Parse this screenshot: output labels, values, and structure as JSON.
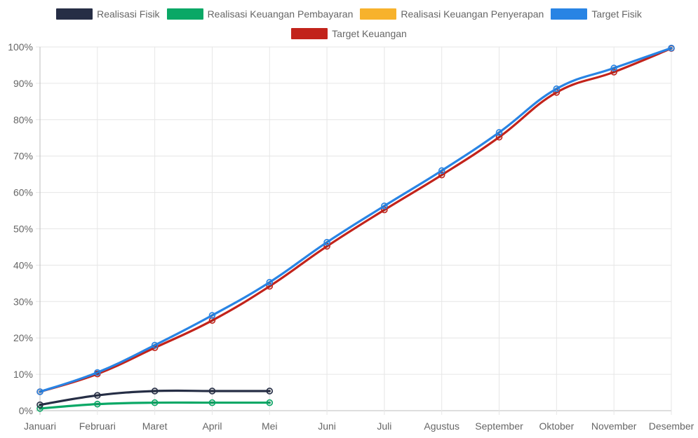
{
  "chart_data": {
    "type": "line",
    "categories": [
      "Januari",
      "Februari",
      "Maret",
      "April",
      "Mei",
      "Juni",
      "Juli",
      "Agustus",
      "September",
      "Oktober",
      "November",
      "Desember"
    ],
    "y_tick_labels": [
      "0%",
      "10%",
      "20%",
      "30%",
      "40%",
      "50%",
      "60%",
      "70%",
      "80%",
      "90%",
      "100%"
    ],
    "ylim": [
      0,
      100
    ],
    "y_unit": "%",
    "grid": true,
    "legend_position": "top",
    "series": [
      {
        "name": "Realisasi Fisik",
        "color": "#262e45",
        "values": [
          1.6,
          4.2,
          5.4,
          5.4,
          5.4,
          null,
          null,
          null,
          null,
          null,
          null,
          null
        ]
      },
      {
        "name": "Realisasi Keuangan Pembayaran",
        "color": "#0aa866",
        "values": [
          0.6,
          1.8,
          2.2,
          2.2,
          2.2,
          null,
          null,
          null,
          null,
          null,
          null,
          null
        ]
      },
      {
        "name": "Realisasi Keuangan Penyerapan",
        "color": "#f7b22c",
        "values": [
          null,
          null,
          null,
          null,
          null,
          null,
          null,
          null,
          null,
          null,
          null,
          null
        ]
      },
      {
        "name": "Target Fisik",
        "color": "#2884e4",
        "values": [
          5.2,
          10.5,
          18.0,
          26.2,
          35.3,
          46.3,
          56.3,
          66.0,
          76.5,
          88.5,
          94.2,
          99.7
        ]
      },
      {
        "name": "Target Keuangan",
        "color": "#c2231b",
        "values": [
          5.2,
          10.1,
          17.3,
          24.8,
          34.2,
          45.2,
          55.2,
          64.8,
          75.2,
          87.5,
          93.1,
          99.6
        ]
      }
    ]
  }
}
